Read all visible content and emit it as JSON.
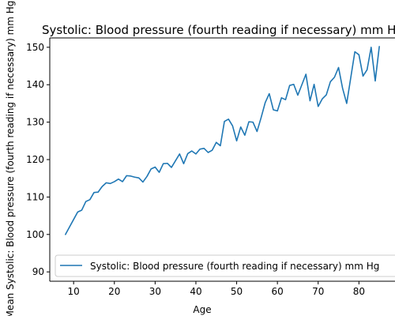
{
  "chart_data": {
    "type": "line",
    "title": "Systolic: Blood pressure (fourth reading if necessary) mm Hg",
    "xlabel": "Age",
    "ylabel": "Mean Systolic: Blood pressure (fourth reading if necessary) mm Hg",
    "xlim": [
      4.15,
      88.85
    ],
    "ylim": [
      87.5,
      152.5
    ],
    "xticks": [
      10,
      20,
      30,
      40,
      50,
      60,
      70,
      80
    ],
    "yticks": [
      90,
      100,
      110,
      120,
      130,
      140,
      150
    ],
    "grid": false,
    "legend_position": "lower-right",
    "series": [
      {
        "name": "Systolic: Blood pressure (fourth reading if necessary) mm Hg",
        "color": "#1f77b4",
        "x": [
          8,
          9,
          10,
          11,
          12,
          13,
          14,
          15,
          16,
          17,
          18,
          19,
          20,
          21,
          22,
          23,
          24,
          25,
          26,
          27,
          28,
          29,
          30,
          31,
          32,
          33,
          34,
          35,
          36,
          37,
          38,
          39,
          40,
          41,
          42,
          43,
          44,
          45,
          46,
          47,
          48,
          49,
          50,
          51,
          52,
          53,
          54,
          55,
          56,
          57,
          58,
          59,
          60,
          61,
          62,
          63,
          64,
          65,
          66,
          67,
          68,
          69,
          70,
          71,
          72,
          73,
          74,
          75,
          76,
          77,
          78,
          79,
          80,
          81,
          82,
          83,
          84,
          85
        ],
        "y": [
          100.0,
          102.0,
          104.0,
          106.0,
          106.5,
          108.8,
          109.3,
          111.2,
          111.3,
          112.8,
          113.8,
          113.6,
          114.1,
          114.8,
          114.1,
          115.7,
          115.6,
          115.3,
          115.1,
          114.0,
          115.5,
          117.5,
          118.0,
          116.6,
          118.9,
          119.0,
          117.9,
          119.7,
          121.5,
          118.9,
          121.6,
          122.3,
          121.5,
          122.8,
          123.0,
          121.9,
          122.5,
          124.6,
          123.7,
          130.2,
          130.8,
          129.0,
          125.0,
          128.7,
          126.5,
          130.1,
          130.0,
          127.5,
          131.2,
          135.2,
          137.6,
          133.3,
          133.0,
          136.5,
          136.0,
          139.8,
          140.1,
          137.2,
          140.0,
          142.8,
          135.7,
          140.1,
          134.2,
          136.2,
          137.3,
          140.8,
          142.0,
          144.6,
          139.0,
          135.0,
          141.9,
          148.8,
          148.0,
          142.3,
          144.0,
          150.0,
          141.0,
          150.2
        ]
      }
    ]
  }
}
